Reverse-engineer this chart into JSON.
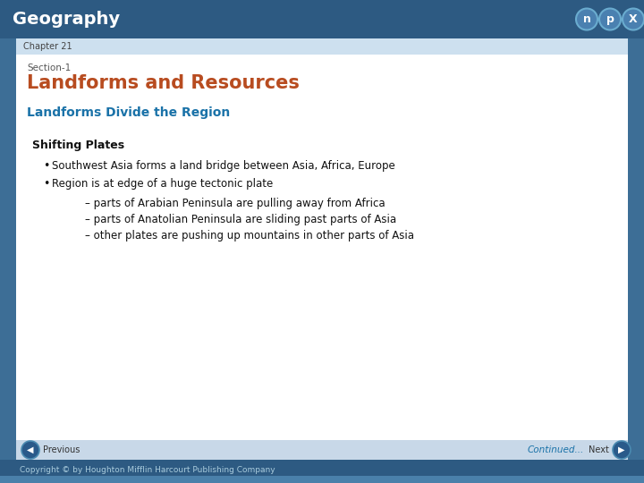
{
  "title": "Geography",
  "chapter": "Chapter 21",
  "section_label": "Section-1",
  "section_title": "Landforms and Resources",
  "subheading": "Landforms Divide the Region",
  "box_heading": "Shifting Plates",
  "bullets": [
    "Southwest Asia forms a land bridge between Asia, Africa, Europe",
    "Region is at edge of a huge tectonic plate"
  ],
  "sub_bullets": [
    "– parts of Arabian Peninsula are pulling away from Africa",
    "– parts of Anatolian Peninsula are sliding past parts of Asia",
    "– other plates are pushing up mountains in other parts of Asia"
  ],
  "footer_left": "Previous",
  "footer_center": "Continued...",
  "footer_right": "Next",
  "copyright": "Copyright © by Houghton Mifflin Harcourt Publishing Company",
  "bg_color": "#3d6e96",
  "header_bg": "#2d5a82",
  "chapter_bar_bg": "#cde0ef",
  "content_bg": "#ffffff",
  "footer_bg": "#c8d8e8",
  "copyright_bg": "#3d6e96",
  "title_color": "#ffffff",
  "chapter_color": "#444444",
  "section_label_color": "#555555",
  "section_title_color": "#b84c20",
  "subheading_color": "#1a72a8",
  "box_heading_color": "#111111",
  "bullet_color": "#111111",
  "sub_bullet_color": "#111111",
  "footer_text_color": "#333333",
  "continued_color": "#1a72a8",
  "copyright_color": "#ccddee"
}
